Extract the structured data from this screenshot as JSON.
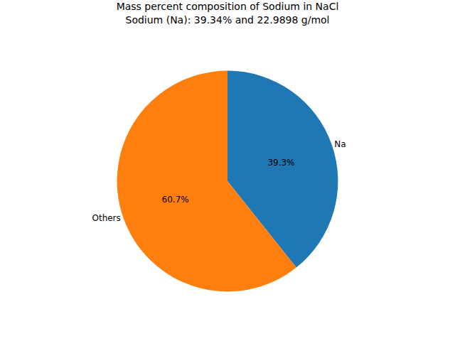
{
  "chart_data": {
    "type": "pie",
    "title": "Mass percent composition of Sodium in NaCl",
    "subtitle": "Sodium (Na): 39.34% and 22.9898 g/mol",
    "categories": [
      "Na",
      "Others"
    ],
    "values": [
      39.3,
      60.7
    ],
    "value_labels": [
      "39.3%",
      "60.7%"
    ],
    "colors": [
      "#1f77b4",
      "#ff7f0e"
    ],
    "data_labels": true
  }
}
